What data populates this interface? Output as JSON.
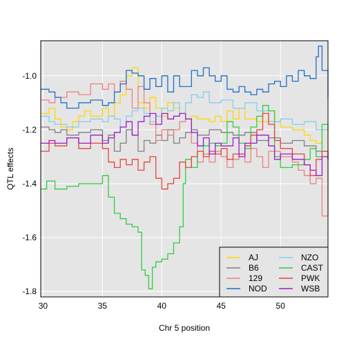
{
  "chart_data": {
    "type": "line",
    "xlabel": "Chr 5 position",
    "ylabel": "QTL effects",
    "xlim": [
      29.8,
      54.0
    ],
    "ylim": [
      -1.82,
      -0.87
    ],
    "xticks": [
      30,
      35,
      40,
      45,
      50
    ],
    "yticks": [
      -1.8,
      -1.6,
      -1.4,
      -1.2,
      -1.0
    ],
    "ytick_labels": [
      "-1.8",
      "-1.6",
      "-1.4",
      "-1.2",
      "-1.0"
    ],
    "grid": true,
    "legend_position": "bottom-right",
    "legend_columns": 2,
    "series": [
      {
        "name": "AJ",
        "color": "#FFD700",
        "x": [
          29.8,
          30.5,
          31,
          31.5,
          32,
          32.5,
          33,
          33.5,
          34,
          35,
          35.5,
          36,
          36.5,
          37,
          37.5,
          38,
          38.5,
          39,
          39.5,
          40,
          40.5,
          41,
          41.5,
          42,
          42.5,
          43,
          44,
          44.5,
          45,
          45.5,
          46,
          46.5,
          47,
          48,
          49,
          49.5,
          50,
          51,
          52,
          52.5,
          53,
          53.5,
          54
        ],
        "y": [
          -1.14,
          -1.12,
          -1.16,
          -1.19,
          -1.2,
          -1.17,
          -1.15,
          -1.13,
          -1.15,
          -1.12,
          -1.15,
          -1.1,
          -1.07,
          -1.0,
          -0.97,
          -1.1,
          -1.12,
          -1.08,
          -1.12,
          -1.15,
          -1.1,
          -1.12,
          -1.14,
          -1.16,
          -1.15,
          -1.16,
          -1.17,
          -1.15,
          -1.17,
          -1.13,
          -1.16,
          -1.12,
          -1.16,
          -1.17,
          -1.13,
          -1.17,
          -1.19,
          -1.2,
          -1.22,
          -1.24,
          -1.25,
          -1.2,
          -1.3
        ]
      },
      {
        "name": "B6",
        "color": "#808080",
        "x": [
          29.8,
          30.5,
          31,
          31.5,
          32,
          33,
          34,
          35,
          35.5,
          36,
          36.5,
          37,
          37.5,
          38,
          38.5,
          39,
          39.5,
          40,
          40.5,
          41,
          41.5,
          42,
          42.5,
          43,
          44,
          45,
          46,
          47,
          48,
          49,
          50,
          51,
          52,
          53,
          54
        ],
        "y": [
          -1.19,
          -1.2,
          -1.21,
          -1.2,
          -1.22,
          -1.21,
          -1.2,
          -1.24,
          -1.22,
          -1.28,
          -1.25,
          -1.2,
          -1.22,
          -1.28,
          -1.24,
          -1.25,
          -1.22,
          -1.24,
          -1.2,
          -1.25,
          -1.23,
          -1.21,
          -1.2,
          -1.22,
          -1.2,
          -1.21,
          -1.22,
          -1.21,
          -1.24,
          -1.23,
          -1.25,
          -1.24,
          -1.26,
          -1.28,
          -1.3
        ]
      },
      {
        "name": "129",
        "color": "#F08080",
        "x": [
          29.8,
          30.5,
          31,
          32,
          33,
          34,
          35,
          35.5,
          36,
          36.5,
          37,
          37.5,
          38,
          38.5,
          39,
          39.5,
          40,
          40.5,
          41,
          41.5,
          42,
          42.5,
          43,
          43.5,
          44,
          44.5,
          45,
          45.5,
          46,
          46.5,
          47,
          47.5,
          48,
          48.5,
          49,
          50,
          51,
          51.5,
          52,
          52.5,
          53,
          53.5,
          54
        ],
        "y": [
          -1.09,
          -1.1,
          -1.08,
          -1.06,
          -1.07,
          -1.03,
          -1.05,
          -1.03,
          -1.06,
          -1.02,
          -1.05,
          -1.12,
          -1.04,
          -1.1,
          -1.18,
          -1.24,
          -1.2,
          -1.22,
          -1.2,
          -1.17,
          -1.16,
          -1.25,
          -1.32,
          -1.29,
          -1.32,
          -1.28,
          -1.3,
          -1.34,
          -1.31,
          -1.29,
          -1.32,
          -1.27,
          -1.3,
          -1.34,
          -1.28,
          -1.3,
          -1.32,
          -1.35,
          -1.37,
          -1.4,
          -1.38,
          -1.52,
          -1.3
        ]
      },
      {
        "name": "NOD",
        "color": "#1E6EC8",
        "x": [
          29.8,
          30.5,
          31,
          31.5,
          32,
          33,
          34,
          35,
          35.5,
          36,
          36.5,
          37,
          37.5,
          38,
          38.5,
          39,
          39.5,
          40,
          40.5,
          41,
          41.5,
          42,
          42.5,
          43,
          43.5,
          44,
          44.5,
          45,
          45.5,
          46,
          46.5,
          47,
          47.5,
          48,
          48.5,
          49,
          49.5,
          50,
          50.5,
          51,
          51.5,
          52,
          52.5,
          53,
          53.2,
          53.5,
          54
        ],
        "y": [
          -1.05,
          -1.06,
          -1.08,
          -1.1,
          -1.12,
          -1.1,
          -1.09,
          -1.11,
          -1.1,
          -1.06,
          -1.03,
          -0.98,
          -0.99,
          -1.0,
          -1.05,
          -1.01,
          -1.04,
          -1.0,
          -1.06,
          -1.0,
          -1.04,
          -1.04,
          -0.98,
          -1.0,
          -0.97,
          -1.0,
          -1.02,
          -1.0,
          -1.05,
          -1.06,
          -1.04,
          -1.06,
          -1.07,
          -1.05,
          -1.06,
          -1.03,
          -1.02,
          -1.04,
          -1.0,
          -1.02,
          -0.98,
          -1.0,
          -1.01,
          -0.93,
          -0.89,
          -0.98,
          -1.08
        ]
      },
      {
        "name": "NZO",
        "color": "#87CEEB",
        "x": [
          29.8,
          30.5,
          31,
          32,
          33,
          34,
          35,
          35.5,
          36,
          36.5,
          37,
          37.5,
          38,
          38.5,
          39,
          39.5,
          40,
          40.5,
          41,
          41.5,
          42,
          42.5,
          43,
          43.5,
          44,
          45,
          46,
          47,
          48,
          49,
          50,
          51,
          52,
          53,
          54
        ],
        "y": [
          -1.15,
          -1.17,
          -1.18,
          -1.19,
          -1.17,
          -1.16,
          -1.17,
          -1.15,
          -1.16,
          -1.19,
          -1.15,
          -1.13,
          -1.12,
          -1.14,
          -1.17,
          -1.15,
          -1.12,
          -1.13,
          -1.1,
          -1.14,
          -1.1,
          -1.07,
          -1.08,
          -1.06,
          -1.1,
          -1.09,
          -1.12,
          -1.1,
          -1.13,
          -1.17,
          -1.16,
          -1.18,
          -1.17,
          -1.2,
          -1.19
        ]
      },
      {
        "name": "CAST",
        "color": "#2ECC40",
        "x": [
          29.8,
          30.3,
          31,
          32,
          33,
          34,
          35,
          35.5,
          36,
          36.5,
          37,
          37.5,
          38,
          38.3,
          38.6,
          38.9,
          39.2,
          39.5,
          40,
          40.5,
          41,
          41.5,
          41.8,
          42,
          42.5,
          43,
          43.5,
          44,
          44.5,
          45,
          45.5,
          46,
          46.5,
          47,
          47.5,
          48,
          48.5,
          49,
          49.5,
          50,
          51,
          52,
          52.5,
          53,
          53.5,
          54
        ],
        "y": [
          -1.42,
          -1.39,
          -1.42,
          -1.41,
          -1.4,
          -1.4,
          -1.37,
          -1.45,
          -1.51,
          -1.53,
          -1.55,
          -1.56,
          -1.58,
          -1.72,
          -1.74,
          -1.79,
          -1.71,
          -1.69,
          -1.68,
          -1.66,
          -1.62,
          -1.56,
          -1.4,
          -1.31,
          -1.34,
          -1.28,
          -1.26,
          -1.25,
          -1.26,
          -1.25,
          -1.17,
          -1.19,
          -1.25,
          -1.27,
          -1.19,
          -1.15,
          -1.11,
          -1.13,
          -1.3,
          -1.34,
          -1.33,
          -1.31,
          -1.27,
          -1.3,
          -1.18,
          -1.2
        ]
      },
      {
        "name": "PWK",
        "color": "#E8423F",
        "x": [
          29.8,
          30.5,
          31,
          32,
          33,
          34,
          35,
          35.5,
          36,
          36.5,
          37,
          37.5,
          38,
          38.5,
          39,
          39.5,
          40,
          40.5,
          41,
          41.5,
          42,
          42.5,
          43,
          43.5,
          44,
          44.5,
          45,
          45.5,
          46,
          47,
          47.5,
          48,
          48.5,
          49,
          49.5,
          50,
          51,
          52,
          52.5,
          53,
          53.5,
          54
        ],
        "y": [
          -1.28,
          -1.25,
          -1.26,
          -1.23,
          -1.27,
          -1.25,
          -1.27,
          -1.32,
          -1.34,
          -1.31,
          -1.33,
          -1.31,
          -1.35,
          -1.32,
          -1.3,
          -1.38,
          -1.42,
          -1.4,
          -1.38,
          -1.32,
          -1.34,
          -1.3,
          -1.28,
          -1.3,
          -1.28,
          -1.29,
          -1.27,
          -1.31,
          -1.29,
          -1.26,
          -1.22,
          -1.2,
          -1.14,
          -1.18,
          -1.24,
          -1.27,
          -1.29,
          -1.33,
          -1.37,
          -1.31,
          -1.28,
          -1.31
        ]
      },
      {
        "name": "WSB",
        "color": "#9B1DC8",
        "x": [
          29.8,
          30.5,
          31,
          32,
          33,
          34,
          35,
          35.5,
          36,
          36.5,
          37,
          37.5,
          38,
          38.5,
          39,
          39.5,
          40,
          40.5,
          41,
          41.5,
          42,
          42.5,
          43,
          43.5,
          44,
          44.5,
          45,
          46,
          46.5,
          47,
          48,
          49,
          49.5,
          50,
          51,
          52,
          52.5,
          53,
          53.5,
          54
        ],
        "y": [
          -1.25,
          -1.24,
          -1.25,
          -1.23,
          -1.25,
          -1.22,
          -1.25,
          -1.23,
          -1.21,
          -1.19,
          -1.17,
          -1.22,
          -1.17,
          -1.15,
          -1.14,
          -1.18,
          -1.14,
          -1.16,
          -1.15,
          -1.14,
          -1.16,
          -1.21,
          -1.26,
          -1.23,
          -1.29,
          -1.25,
          -1.26,
          -1.23,
          -1.3,
          -1.25,
          -1.22,
          -1.26,
          -1.31,
          -1.29,
          -1.31,
          -1.33,
          -1.35,
          -1.37,
          -1.3,
          -1.31
        ]
      }
    ]
  }
}
